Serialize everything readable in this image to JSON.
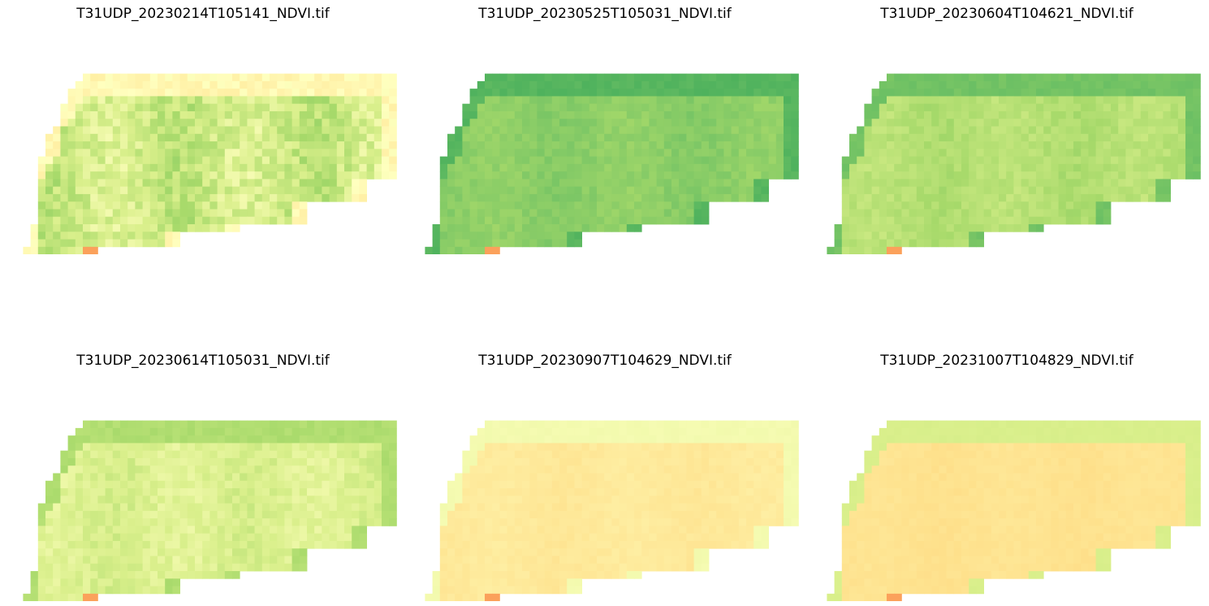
{
  "chart_data": [
    {
      "type": "heatmap",
      "title": "T31UDP_20230214T105141_NDVI.tif",
      "colormap": "RdYlGn",
      "base_ndvi": 0.62,
      "variation": 0.06,
      "edge_ndvi": 0.48,
      "corner_ndvi": 0.28,
      "grid": false,
      "axes": "off"
    },
    {
      "type": "heatmap",
      "title": "T31UDP_20230525T105031_NDVI.tif",
      "colormap": "RdYlGn",
      "base_ndvi": 0.74,
      "variation": 0.02,
      "edge_ndvi": 0.82,
      "corner_ndvi": 0.28,
      "grid": false,
      "axes": "off"
    },
    {
      "type": "heatmap",
      "title": "T31UDP_20230604T104621_NDVI.tif",
      "colormap": "RdYlGn",
      "base_ndvi": 0.67,
      "variation": 0.025,
      "edge_ndvi": 0.78,
      "corner_ndvi": 0.28,
      "grid": false,
      "axes": "off"
    },
    {
      "type": "heatmap",
      "title": "T31UDP_20230614T105031_NDVI.tif",
      "colormap": "RdYlGn",
      "base_ndvi": 0.59,
      "variation": 0.03,
      "edge_ndvi": 0.68,
      "corner_ndvi": 0.28,
      "grid": false,
      "axes": "off"
    },
    {
      "type": "heatmap",
      "title": "T31UDP_20230907T104629_NDVI.tif",
      "colormap": "RdYlGn",
      "base_ndvi": 0.43,
      "variation": 0.01,
      "edge_ndvi": 0.53,
      "corner_ndvi": 0.28,
      "grid": false,
      "axes": "off"
    },
    {
      "type": "heatmap",
      "title": "T31UDP_20231007T104829_NDVI.tif",
      "colormap": "RdYlGn",
      "base_ndvi": 0.41,
      "variation": 0.008,
      "edge_ndvi": 0.6,
      "corner_ndvi": 0.28,
      "grid": false,
      "axes": "off"
    }
  ]
}
